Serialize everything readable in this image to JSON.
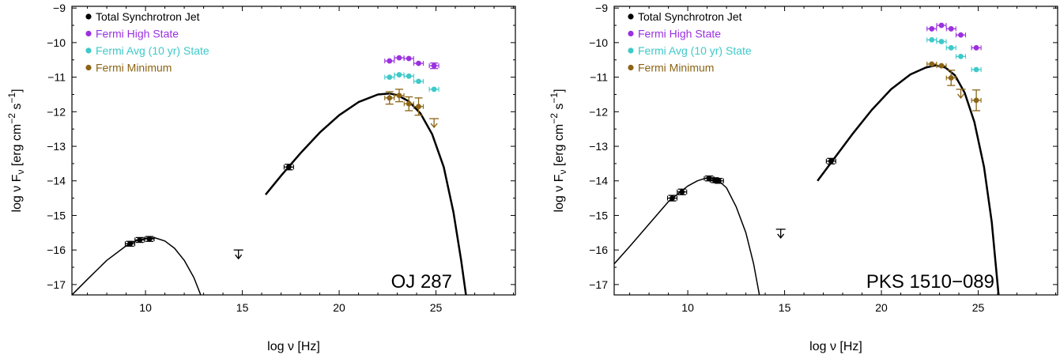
{
  "chart_data": [
    {
      "type": "scatter",
      "xlabel": "log ν [Hz]",
      "ylabel": "log ν F_ν [erg cm⁻² s⁻¹]",
      "ylabel_parts": {
        "prefix": "log  ν F",
        "sub": "ν",
        "mid": "  [erg  cm",
        "sup1": "−2",
        "s": "  s",
        "sup2": "−1",
        "end": "]"
      },
      "xlim": [
        6.2,
        29.1
      ],
      "ylim": [
        -17.3,
        -8.95
      ],
      "xticks": [
        10,
        15,
        20,
        25
      ],
      "yticks": [
        -9,
        -10,
        -11,
        -12,
        -13,
        -14,
        -15,
        -16,
        -17
      ],
      "ytick_labels": [
        "−9",
        "−10",
        "−11",
        "−12",
        "−13",
        "−14",
        "−15",
        "−16",
        "−17"
      ],
      "xtick_labels": [
        "10",
        "15",
        "20",
        "25"
      ],
      "annotation": "OJ 287",
      "legend": [
        {
          "label": "Total Synchrotron Jet",
          "color": "#000000"
        },
        {
          "label": "Fermi High State",
          "color": "#9b30e0"
        },
        {
          "label": "Fermi Avg (10 yr) State",
          "color": "#3ec9c9"
        },
        {
          "label": "Fermi Minimum",
          "color": "#8b6414"
        }
      ],
      "series": [
        {
          "name": "Total Synchrotron Jet",
          "color": "#000000",
          "points": [
            {
              "x": 9.2,
              "y": -15.82,
              "yerr": 0.07
            },
            {
              "x": 9.7,
              "y": -15.71,
              "yerr": 0.07
            },
            {
              "x": 10.2,
              "y": -15.68,
              "yerr": 0.07
            },
            {
              "x": 17.4,
              "y": -13.6,
              "yerr": 0.08
            }
          ]
        },
        {
          "name": "Fermi High State",
          "color": "#9b30e0",
          "points": [
            {
              "x": 22.6,
              "y": -10.53
            },
            {
              "x": 23.1,
              "y": -10.44
            },
            {
              "x": 23.6,
              "y": -10.46
            },
            {
              "x": 24.1,
              "y": -10.6
            },
            {
              "x": 24.9,
              "y": -10.67,
              "yerr": 0.08
            }
          ]
        },
        {
          "name": "Fermi Avg (10 yr) State",
          "color": "#3ec9c9",
          "points": [
            {
              "x": 22.6,
              "y": -11.0
            },
            {
              "x": 23.1,
              "y": -10.93
            },
            {
              "x": 23.6,
              "y": -10.97
            },
            {
              "x": 24.1,
              "y": -11.12
            },
            {
              "x": 24.9,
              "y": -11.35
            }
          ]
        },
        {
          "name": "Fermi Minimum",
          "color": "#8b6414",
          "points": [
            {
              "x": 22.6,
              "y": -11.6,
              "yerr": 0.18
            },
            {
              "x": 23.1,
              "y": -11.53,
              "yerr": 0.18
            },
            {
              "x": 23.6,
              "y": -11.77,
              "yerr": 0.2
            },
            {
              "x": 24.1,
              "y": -11.85,
              "yerr": 0.25
            }
          ]
        }
      ],
      "upper_limits": [
        {
          "x": 14.8,
          "y": -16.0,
          "color": "#000000"
        },
        {
          "x": 24.9,
          "y": -12.2,
          "color": "#8b6414"
        }
      ],
      "curves": [
        {
          "name": "synchrotron-low",
          "color": "#000000",
          "width": 1.5,
          "points": [
            [
              6.2,
              -17.3
            ],
            [
              7.0,
              -16.85
            ],
            [
              8.0,
              -16.3
            ],
            [
              9.0,
              -15.88
            ],
            [
              9.5,
              -15.74
            ],
            [
              10.0,
              -15.66
            ],
            [
              10.5,
              -15.65
            ],
            [
              11.0,
              -15.74
            ],
            [
              11.5,
              -15.95
            ],
            [
              12.0,
              -16.3
            ],
            [
              12.5,
              -16.8
            ],
            [
              12.85,
              -17.3
            ]
          ]
        },
        {
          "name": "synchrotron-high",
          "color": "#000000",
          "width": 2.5,
          "points": [
            [
              16.2,
              -14.4
            ],
            [
              17.0,
              -13.85
            ],
            [
              18.0,
              -13.2
            ],
            [
              19.0,
              -12.6
            ],
            [
              20.0,
              -12.1
            ],
            [
              21.0,
              -11.72
            ],
            [
              22.0,
              -11.5
            ],
            [
              22.6,
              -11.47
            ],
            [
              23.0,
              -11.52
            ],
            [
              23.6,
              -11.7
            ],
            [
              24.2,
              -12.05
            ],
            [
              24.8,
              -12.65
            ],
            [
              25.4,
              -13.6
            ],
            [
              25.9,
              -14.9
            ],
            [
              26.3,
              -16.3
            ],
            [
              26.55,
              -17.3
            ]
          ]
        }
      ]
    },
    {
      "type": "scatter",
      "xlabel": "log ν [Hz]",
      "ylabel": "log ν F_ν [erg cm⁻² s⁻¹]",
      "ylabel_parts": {
        "prefix": "log  ν F",
        "sub": "ν",
        "mid": "  [erg  cm",
        "sup1": "−2",
        "s": "  s",
        "sup2": "−1",
        "end": "]"
      },
      "xlim": [
        6.2,
        29.1
      ],
      "ylim": [
        -17.3,
        -8.95
      ],
      "xticks": [
        10,
        15,
        20,
        25
      ],
      "yticks": [
        -9,
        -10,
        -11,
        -12,
        -13,
        -14,
        -15,
        -16,
        -17
      ],
      "ytick_labels": [
        "−9",
        "−10",
        "−11",
        "−12",
        "−13",
        "−14",
        "−15",
        "−16",
        "−17"
      ],
      "xtick_labels": [
        "10",
        "15",
        "20",
        "25"
      ],
      "annotation": "PKS 1510−089",
      "legend": [
        {
          "label": "Total Synchrotron Jet",
          "color": "#000000"
        },
        {
          "label": "Fermi High State",
          "color": "#9b30e0"
        },
        {
          "label": "Fermi Avg (10 yr) State",
          "color": "#3ec9c9"
        },
        {
          "label": "Fermi Minimum",
          "color": "#8b6414"
        }
      ],
      "series": [
        {
          "name": "Total Synchrotron Jet",
          "color": "#000000",
          "points": [
            {
              "x": 9.2,
              "y": -14.5,
              "yerr": 0.08
            },
            {
              "x": 9.7,
              "y": -14.32,
              "yerr": 0.08
            },
            {
              "x": 11.1,
              "y": -13.93,
              "yerr": 0.07
            },
            {
              "x": 11.4,
              "y": -13.98,
              "yerr": 0.07
            },
            {
              "x": 11.6,
              "y": -14.0,
              "yerr": 0.07
            },
            {
              "x": 17.4,
              "y": -13.43,
              "yerr": 0.08
            }
          ]
        },
        {
          "name": "Fermi High State",
          "color": "#9b30e0",
          "points": [
            {
              "x": 22.6,
              "y": -9.6
            },
            {
              "x": 23.1,
              "y": -9.5
            },
            {
              "x": 23.6,
              "y": -9.6
            },
            {
              "x": 24.1,
              "y": -9.78
            },
            {
              "x": 24.9,
              "y": -10.15
            }
          ]
        },
        {
          "name": "Fermi Avg (10 yr) State",
          "color": "#3ec9c9",
          "points": [
            {
              "x": 22.6,
              "y": -9.92
            },
            {
              "x": 23.1,
              "y": -9.97
            },
            {
              "x": 23.6,
              "y": -10.15
            },
            {
              "x": 24.1,
              "y": -10.4
            },
            {
              "x": 24.9,
              "y": -10.78
            }
          ]
        },
        {
          "name": "Fermi Minimum",
          "color": "#8b6414",
          "points": [
            {
              "x": 22.6,
              "y": -10.62
            },
            {
              "x": 23.1,
              "y": -10.67
            },
            {
              "x": 23.6,
              "y": -11.02,
              "yerr": 0.22
            },
            {
              "x": 24.9,
              "y": -11.67,
              "yerr": 0.3
            }
          ]
        }
      ],
      "upper_limits": [
        {
          "x": 14.8,
          "y": -15.4,
          "color": "#000000"
        },
        {
          "x": 24.1,
          "y": -11.35,
          "color": "#8b6414"
        }
      ],
      "curves": [
        {
          "name": "synchrotron-low",
          "color": "#000000",
          "width": 1.5,
          "points": [
            [
              6.2,
              -16.4
            ],
            [
              7.0,
              -15.9
            ],
            [
              8.0,
              -15.25
            ],
            [
              9.0,
              -14.6
            ],
            [
              10.0,
              -14.15
            ],
            [
              10.5,
              -14.0
            ],
            [
              11.0,
              -13.91
            ],
            [
              11.5,
              -13.95
            ],
            [
              12.0,
              -14.2
            ],
            [
              12.5,
              -14.75
            ],
            [
              13.0,
              -15.5
            ],
            [
              13.4,
              -16.4
            ],
            [
              13.7,
              -17.3
            ]
          ]
        },
        {
          "name": "synchrotron-high",
          "color": "#000000",
          "width": 2.5,
          "points": [
            [
              16.7,
              -14.0
            ],
            [
              17.5,
              -13.4
            ],
            [
              18.5,
              -12.65
            ],
            [
              19.5,
              -11.95
            ],
            [
              20.5,
              -11.35
            ],
            [
              21.5,
              -10.92
            ],
            [
              22.3,
              -10.72
            ],
            [
              22.8,
              -10.66
            ],
            [
              23.3,
              -10.72
            ],
            [
              23.8,
              -10.95
            ],
            [
              24.3,
              -11.45
            ],
            [
              24.8,
              -12.3
            ],
            [
              25.3,
              -13.6
            ],
            [
              25.7,
              -15.2
            ],
            [
              26.05,
              -17.3
            ]
          ]
        }
      ]
    }
  ]
}
